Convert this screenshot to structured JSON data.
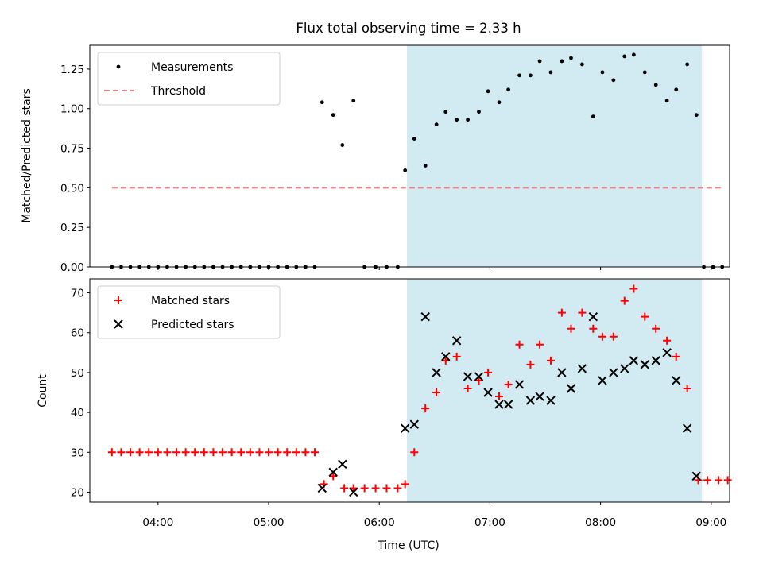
{
  "chart_data": [
    {
      "type": "scatter",
      "title": "Flux total observing time = 2.33 h",
      "xlabel": "",
      "ylabel": "Matched/Predicted stars",
      "ylim": [
        0,
        1.4
      ],
      "yticks": [
        "0.00",
        "0.25",
        "0.50",
        "0.75",
        "1.00",
        "1.25"
      ],
      "legend_position": "top-left",
      "series": [
        {
          "name": "Measurements",
          "marker": "dot",
          "color": "#000000",
          "points": [
            [
              "03:35",
              0
            ],
            [
              "03:40",
              0
            ],
            [
              "03:45",
              0
            ],
            [
              "03:50",
              0
            ],
            [
              "03:55",
              0
            ],
            [
              "04:00",
              0
            ],
            [
              "04:05",
              0
            ],
            [
              "04:10",
              0
            ],
            [
              "04:15",
              0
            ],
            [
              "04:20",
              0
            ],
            [
              "04:25",
              0
            ],
            [
              "04:30",
              0
            ],
            [
              "04:35",
              0
            ],
            [
              "04:40",
              0
            ],
            [
              "04:45",
              0
            ],
            [
              "04:50",
              0
            ],
            [
              "04:55",
              0
            ],
            [
              "05:00",
              0
            ],
            [
              "05:05",
              0
            ],
            [
              "05:10",
              0
            ],
            [
              "05:15",
              0
            ],
            [
              "05:20",
              0
            ],
            [
              "05:25",
              0
            ],
            [
              "05:29",
              1.04
            ],
            [
              "05:35",
              0.96
            ],
            [
              "05:40",
              0.77
            ],
            [
              "05:46",
              1.05
            ],
            [
              "05:52",
              0
            ],
            [
              "05:58",
              0
            ],
            [
              "06:04",
              0
            ],
            [
              "06:10",
              0
            ],
            [
              "06:14",
              0.61
            ],
            [
              "06:19",
              0.81
            ],
            [
              "06:25",
              0.64
            ],
            [
              "06:31",
              0.9
            ],
            [
              "06:36",
              0.98
            ],
            [
              "06:42",
              0.93
            ],
            [
              "06:48",
              0.93
            ],
            [
              "06:54",
              0.98
            ],
            [
              "06:59",
              1.11
            ],
            [
              "07:05",
              1.04
            ],
            [
              "07:10",
              1.12
            ],
            [
              "07:16",
              1.21
            ],
            [
              "07:22",
              1.21
            ],
            [
              "07:27",
              1.3
            ],
            [
              "07:33",
              1.23
            ],
            [
              "07:39",
              1.3
            ],
            [
              "07:44",
              1.32
            ],
            [
              "07:50",
              1.28
            ],
            [
              "07:56",
              0.95
            ],
            [
              "08:01",
              1.23
            ],
            [
              "08:07",
              1.18
            ],
            [
              "08:13",
              1.33
            ],
            [
              "08:18",
              1.34
            ],
            [
              "08:24",
              1.23
            ],
            [
              "08:30",
              1.15
            ],
            [
              "08:36",
              1.05
            ],
            [
              "08:41",
              1.12
            ],
            [
              "08:47",
              1.28
            ],
            [
              "08:52",
              0.96
            ],
            [
              "08:56",
              0
            ],
            [
              "09:01",
              0
            ],
            [
              "09:06",
              0
            ]
          ]
        },
        {
          "name": "Threshold",
          "marker": "dashed-line",
          "color": "#f08080",
          "points": [
            [
              "03:35",
              0.5
            ],
            [
              "09:06",
              0.5
            ]
          ]
        }
      ],
      "shaded_interval": {
        "from": "06:15",
        "to": "08:55",
        "color": "#add8e6"
      }
    },
    {
      "type": "scatter",
      "title": "",
      "xlabel": "Time (UTC)",
      "ylabel": "Count",
      "ylim": [
        17.5,
        73.5
      ],
      "yticks": [
        "20",
        "30",
        "40",
        "50",
        "60",
        "70"
      ],
      "xticks": [
        "04:00",
        "05:00",
        "06:00",
        "07:00",
        "08:00",
        "09:00"
      ],
      "legend_position": "top-left",
      "series": [
        {
          "name": "Matched stars",
          "marker": "plus",
          "color": "#ff0000",
          "points": [
            [
              "03:35",
              30
            ],
            [
              "03:40",
              30
            ],
            [
              "03:45",
              30
            ],
            [
              "03:50",
              30
            ],
            [
              "03:55",
              30
            ],
            [
              "04:00",
              30
            ],
            [
              "04:05",
              30
            ],
            [
              "04:10",
              30
            ],
            [
              "04:15",
              30
            ],
            [
              "04:20",
              30
            ],
            [
              "04:25",
              30
            ],
            [
              "04:30",
              30
            ],
            [
              "04:35",
              30
            ],
            [
              "04:40",
              30
            ],
            [
              "04:45",
              30
            ],
            [
              "04:50",
              30
            ],
            [
              "04:55",
              30
            ],
            [
              "05:00",
              30
            ],
            [
              "05:05",
              30
            ],
            [
              "05:10",
              30
            ],
            [
              "05:15",
              30
            ],
            [
              "05:20",
              30
            ],
            [
              "05:25",
              30
            ],
            [
              "05:30",
              22
            ],
            [
              "05:35",
              24
            ],
            [
              "05:41",
              21
            ],
            [
              "05:46",
              21
            ],
            [
              "05:52",
              21
            ],
            [
              "05:58",
              21
            ],
            [
              "06:04",
              21
            ],
            [
              "06:10",
              21
            ],
            [
              "06:14",
              22
            ],
            [
              "06:19",
              30
            ],
            [
              "06:25",
              41
            ],
            [
              "06:31",
              45
            ],
            [
              "06:36",
              53
            ],
            [
              "06:42",
              54
            ],
            [
              "06:48",
              46
            ],
            [
              "06:54",
              48
            ],
            [
              "06:59",
              50
            ],
            [
              "07:05",
              44
            ],
            [
              "07:10",
              47
            ],
            [
              "07:16",
              57
            ],
            [
              "07:22",
              52
            ],
            [
              "07:27",
              57
            ],
            [
              "07:33",
              53
            ],
            [
              "07:39",
              65
            ],
            [
              "07:44",
              61
            ],
            [
              "07:50",
              65
            ],
            [
              "07:56",
              61
            ],
            [
              "08:01",
              59
            ],
            [
              "08:07",
              59
            ],
            [
              "08:13",
              68
            ],
            [
              "08:18",
              71
            ],
            [
              "08:24",
              64
            ],
            [
              "08:30",
              61
            ],
            [
              "08:36",
              58
            ],
            [
              "08:41",
              54
            ],
            [
              "08:47",
              46
            ],
            [
              "08:53",
              23
            ],
            [
              "08:58",
              23
            ],
            [
              "09:04",
              23
            ],
            [
              "09:09",
              23
            ]
          ]
        },
        {
          "name": "Predicted stars",
          "marker": "x",
          "color": "#000000",
          "points": [
            [
              "05:29",
              21
            ],
            [
              "05:35",
              25
            ],
            [
              "05:40",
              27
            ],
            [
              "05:46",
              20
            ],
            [
              "06:14",
              36
            ],
            [
              "06:19",
              37
            ],
            [
              "06:25",
              64
            ],
            [
              "06:31",
              50
            ],
            [
              "06:36",
              54
            ],
            [
              "06:42",
              58
            ],
            [
              "06:48",
              49
            ],
            [
              "06:54",
              49
            ],
            [
              "06:59",
              45
            ],
            [
              "07:05",
              42
            ],
            [
              "07:10",
              42
            ],
            [
              "07:16",
              47
            ],
            [
              "07:22",
              43
            ],
            [
              "07:27",
              44
            ],
            [
              "07:33",
              43
            ],
            [
              "07:39",
              50
            ],
            [
              "07:44",
              46
            ],
            [
              "07:50",
              51
            ],
            [
              "07:56",
              64
            ],
            [
              "08:01",
              48
            ],
            [
              "08:07",
              50
            ],
            [
              "08:13",
              51
            ],
            [
              "08:18",
              53
            ],
            [
              "08:24",
              52
            ],
            [
              "08:30",
              53
            ],
            [
              "08:36",
              55
            ],
            [
              "08:41",
              48
            ],
            [
              "08:47",
              36
            ],
            [
              "08:52",
              24
            ]
          ]
        }
      ],
      "shaded_interval": {
        "from": "06:15",
        "to": "08:55",
        "color": "#add8e6"
      }
    }
  ]
}
